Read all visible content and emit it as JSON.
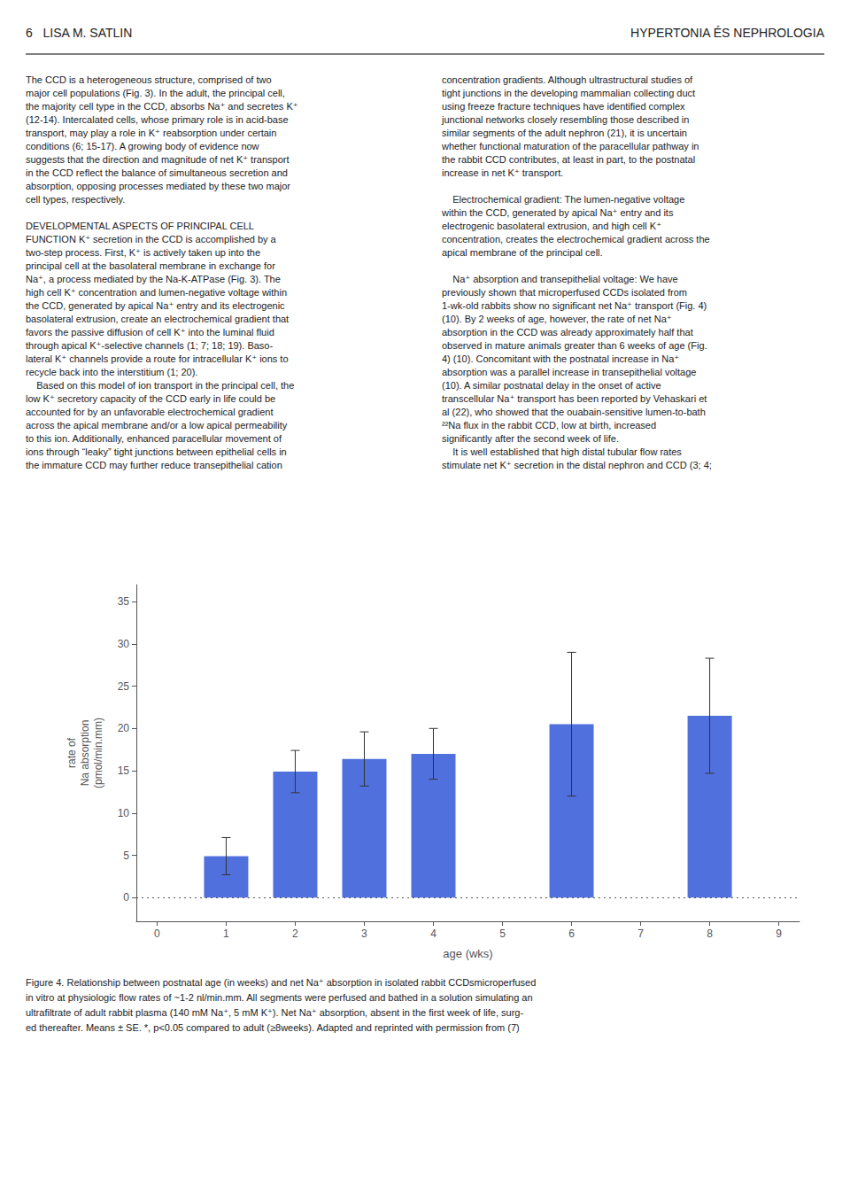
{
  "chart_data": {
    "type": "bar",
    "x": [
      1,
      2,
      3,
      4,
      6,
      8
    ],
    "values": [
      4.9,
      14.9,
      16.4,
      17.0,
      20.5,
      21.5
    ],
    "errors": [
      2.2,
      2.5,
      3.2,
      3.0,
      8.5,
      6.8
    ],
    "hline": 0,
    "xlim": [
      -0.3,
      9.3
    ],
    "ylim": [
      -2.8,
      37
    ],
    "xticks": [
      0,
      1,
      2,
      3,
      4,
      5,
      6,
      7,
      8,
      9
    ],
    "yticks": [
      0,
      5,
      10,
      15,
      20,
      25,
      30,
      35
    ],
    "xlabel": "age (wks)",
    "ylabel": "rate of\nNa absorption\n(pmol/min.mm)",
    "grid": false,
    "annotations": [
      "6   LISA M. SATLIN",
      "HYPERTONIA ÉS NEPHROLOGIA",
      "The CCD is a heterogeneous structure, comprised of two\nmajor cell populations (Fig. 3). In the adult, the principal cell,\nthe majority cell type in the CCD, absorbs Na⁺ and secretes K⁺\n(12-14). Intercalated cells, whose primary role is in acid-base\ntransport, may play a role in K⁺ reabsorption under certain\nconditions (6; 15-17). A growing body of evidence now\nsuggests that the direction and magnitude of net K⁺ transport\nin the CCD reflect the balance of simultaneous secretion and\nabsorption, opposing processes mediated by these two major\ncell types, respectively.\n\nDEVELOPMENTAL ASPECTS OF PRINCIPAL CELL\nFUNCTION K⁺ secretion in the CCD is accomplished by a\ntwo-step process. First, K⁺ is actively taken up into the\nprincipal cell at the basolateral membrane in exchange for\nNa⁺, a process mediated by the Na-K-ATPase (Fig. 3). The\nhigh cell K⁺ concentration and lumen-negative voltage within\nthe CCD, generated by apical Na⁺ entry and its electrogenic\nbasolateral extrusion, create an electrochemical gradient that\nfavors the passive diffusion of cell K⁺ into the luminal fluid\nthrough apical K⁺-selective channels (1; 7; 18; 19). Baso-\nlateral K⁺ channels provide a route for intracellular K⁺ ions to\nrecycle back into the interstitium (1; 20).\n    Based on this model of ion transport in the principal cell, the\nlow K⁺ secretory capacity of the CCD early in life could be\naccounted for by an unfavorable electrochemical gradient\nacross the apical membrane and/or a low apical permeability\nto this ion. Additionally, enhanced paracellular movement of\nions through “leaky” tight junctions between epithelial cells in\nthe immature CCD may further reduce transepithelial cation",
      "concentration gradients. Although ultrastructural studies of\ntight junctions in the developing mammalian collecting duct\nusing freeze fracture techniques have identified complex\njunctional networks closely resembling those described in\nsimilar segments of the adult nephron (21), it is uncertain\nwhether functional maturation of the paracellular pathway in\nthe rabbit CCD contributes, at least in part, to the postnatal\nincrease in net K⁺ transport.\n\n    Electrochemical gradient: The lumen-negative voltage\nwithin the CCD, generated by apical Na⁺ entry and its\nelectrogenic basolateral extrusion, and high cell K⁺\nconcentration, creates the electrochemical gradient across the\napical membrane of the principal cell.\n\n    Na⁺ absorption and transepithelial voltage: We have\npreviously shown that microperfused CCDs isolated from\n1-wk-old rabbits show no significant net Na⁺ transport (Fig. 4)\n(10). By 2 weeks of age, however, the rate of net Na⁺\nabsorption in the CCD was already approximately half that\nobserved in mature animals greater than 6 weeks of age (Fig.\n4) (10). Concomitant with the postnatal increase in Na⁺\nabsorption was a parallel increase in transepithelial voltage\n(10). A similar postnatal delay in the onset of active\ntranscellular Na⁺ transport has been reported by Vehaskari et\nal (22), who showed that the ouabain-sensitive lumen-to-bath\n²²Na flux in the rabbit CCD, low at birth, increased\nsignificantly after the second week of life.\n    It is well established that high distal tubular flow rates\nstimulate net K⁺ secretion in the distal nephron and CCD (3; 4;",
      "Figure 4. Relationship between postnatal age (in weeks) and net Na⁺ absorption in isolated rabbit CCDsmicroperfused\nin vitro at physiologic flow rates of ~1-2 nl/min.mm. All segments were perfused and bathed in a solution simulating an\nultrafiltrate of adult rabbit plasma (140 mM Na⁺, 5 mM K⁺). Net Na⁺ absorption, absent in the first week of life, surg-\ned thereafter. Means ± SE. *, p<0.05 compared to adult (≥8weeks). Adapted and reprinted with permission from (7)"
    ]
  }
}
